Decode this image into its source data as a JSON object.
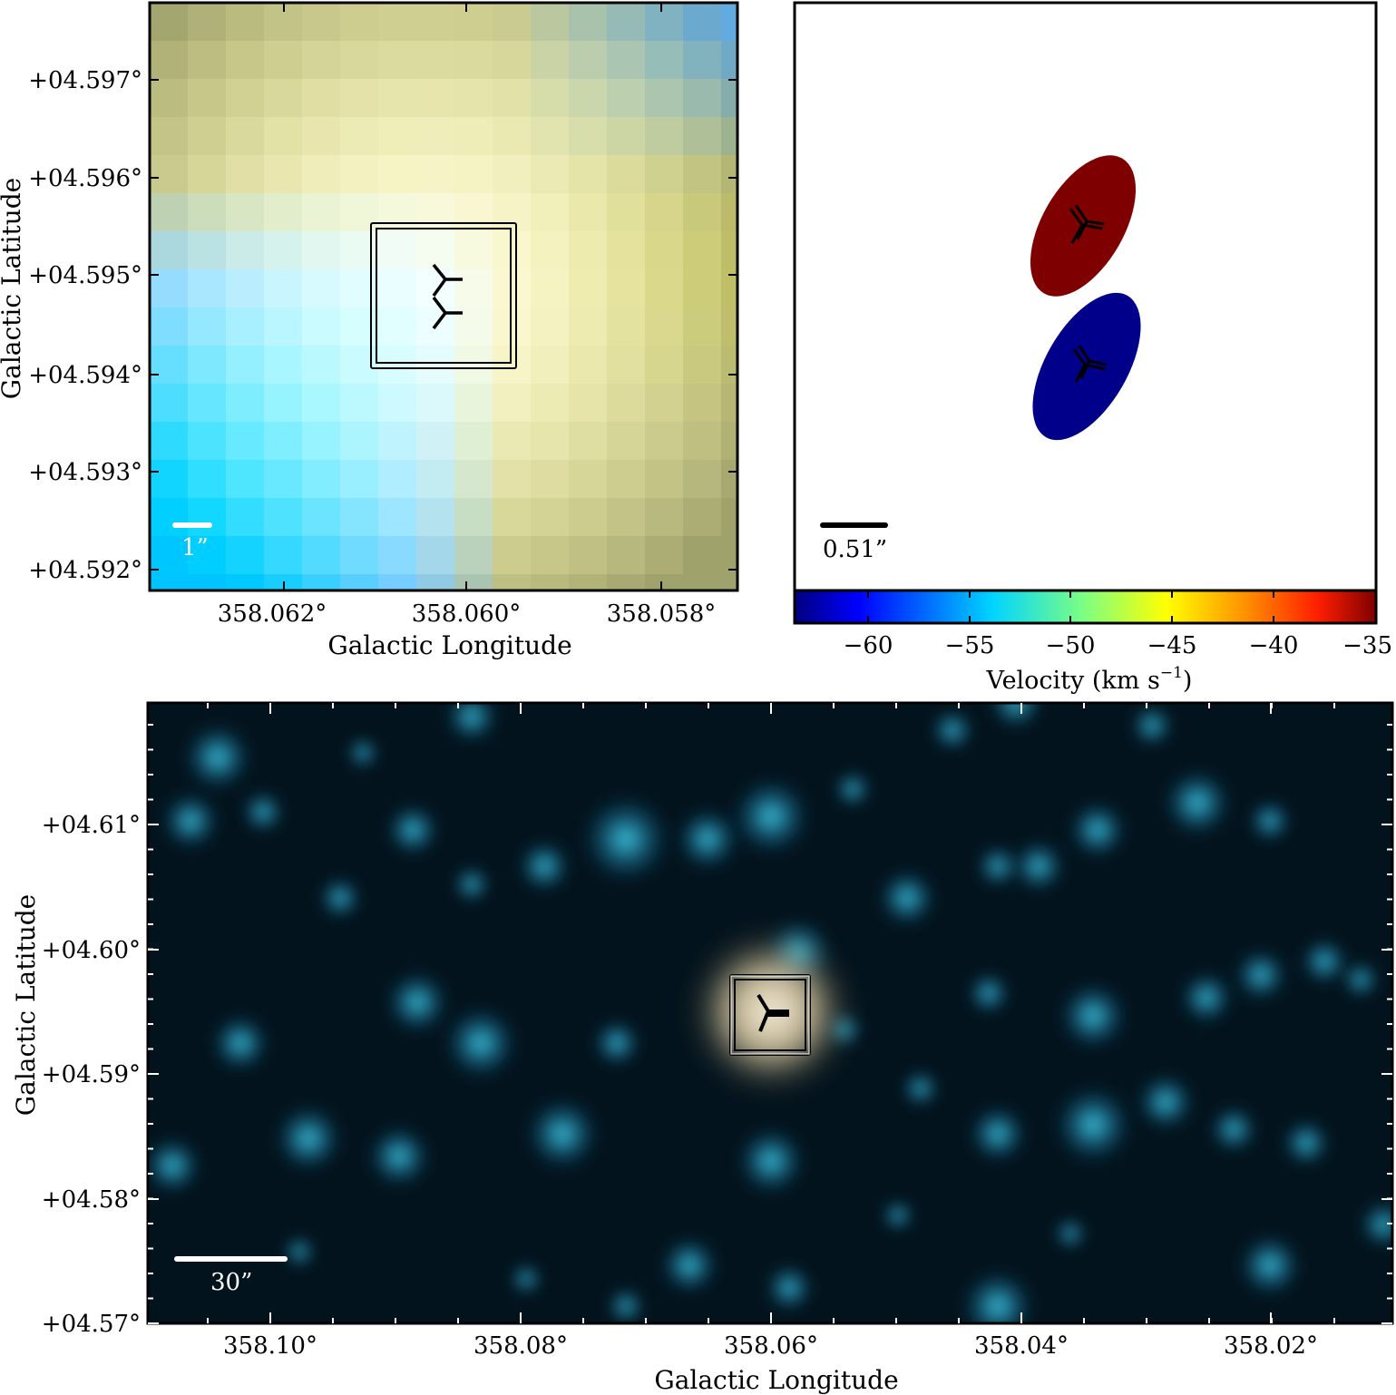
{
  "panel_top_left": {
    "xlabel": "Galactic Longitude",
    "ylabel": "Galactic Latitude",
    "xticks": [
      "358.062°",
      "358.060°",
      "358.058°"
    ],
    "yticks": [
      "+04.597°",
      "+04.596°",
      "+04.595°",
      "+04.594°",
      "+04.593°",
      "+04.592°"
    ],
    "scalebar_label": "1”"
  },
  "panel_top_right": {
    "scalebar_label": "0.51”",
    "components": [
      {
        "color": "#7f0000",
        "velocity": -36
      },
      {
        "color": "#00008b",
        "velocity": -63
      }
    ],
    "colorbar": {
      "label": "Velocity (km s",
      "label_sup": "−1",
      "label_end": ")",
      "ticks": [
        "−60",
        "−55",
        "−50",
        "−45",
        "−40",
        "−35"
      ],
      "range": [
        -63.5,
        -35
      ],
      "colors": [
        "#00007f",
        "#0000ff",
        "#007fff",
        "#00ffff",
        "#7fff7f",
        "#ffff00",
        "#ff7f00",
        "#ff0000",
        "#7f0000"
      ]
    }
  },
  "panel_bottom": {
    "xlabel": "Galactic Longitude",
    "ylabel": "Galactic Latitude",
    "xticks": [
      "358.10°",
      "358.08°",
      "358.06°",
      "358.04°",
      "358.02°"
    ],
    "yticks": [
      "+04.61°",
      "+04.60°",
      "+04.59°",
      "+04.58°",
      "+04.57°"
    ],
    "scalebar_label": "30”"
  }
}
